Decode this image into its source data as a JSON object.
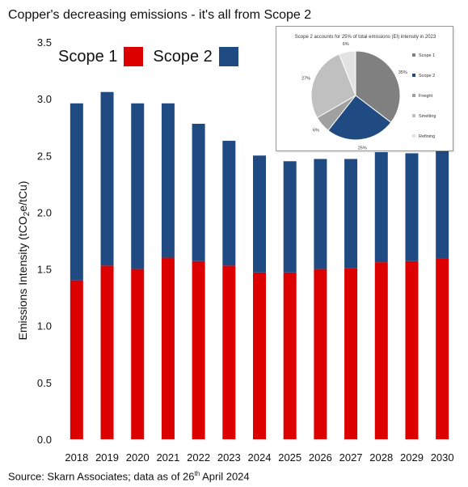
{
  "title": "Copper's decreasing emissions - it's all from Scope 2",
  "source": {
    "text": "Source: Skarn Associates; data as of 26",
    "sup": "th",
    "tail": " April 2024"
  },
  "colors": {
    "scope1": "#dc0000",
    "scope2": "#1f4a82"
  },
  "chart_data": [
    {
      "type": "bar",
      "stacked": true,
      "categories": [
        "2018",
        "2019",
        "2020",
        "2021",
        "2022",
        "2023",
        "2024",
        "2025",
        "2026",
        "2027",
        "2028",
        "2029",
        "2030"
      ],
      "series": [
        {
          "name": "Scope 1",
          "values": [
            1.4,
            1.53,
            1.5,
            1.6,
            1.57,
            1.53,
            1.47,
            1.47,
            1.5,
            1.51,
            1.56,
            1.57,
            1.59
          ]
        },
        {
          "name": "Scope 2",
          "values": [
            1.56,
            1.53,
            1.46,
            1.36,
            1.21,
            1.1,
            1.03,
            0.98,
            0.97,
            0.96,
            0.97,
            0.95,
            0.96
          ]
        }
      ],
      "ylabel_parts": [
        "Emissions Intensity (tCO",
        "2",
        "e/tCu)"
      ],
      "yticks": [
        "0.0",
        "0.5",
        "1.0",
        "1.5",
        "2.0",
        "2.5",
        "3.0",
        "3.5"
      ],
      "ylim": [
        0,
        3.5
      ],
      "legend": "top-left"
    },
    {
      "type": "pie",
      "title": "Scope 2 accounts for 25% of total emissions (EI) intensity in 2023",
      "labels": [
        "Scope 1",
        "Scope 2",
        "Freight",
        "Smelting",
        "Refining"
      ],
      "values": [
        35,
        25,
        6,
        27,
        6
      ],
      "value_labels": [
        "35%",
        "25%",
        "6%",
        "27%",
        "6%"
      ],
      "colors": [
        "#808080",
        "#1f4a82",
        "#a0a0a0",
        "#c0c0c0",
        "#e2e2e2"
      ],
      "legend": "right"
    }
  ]
}
